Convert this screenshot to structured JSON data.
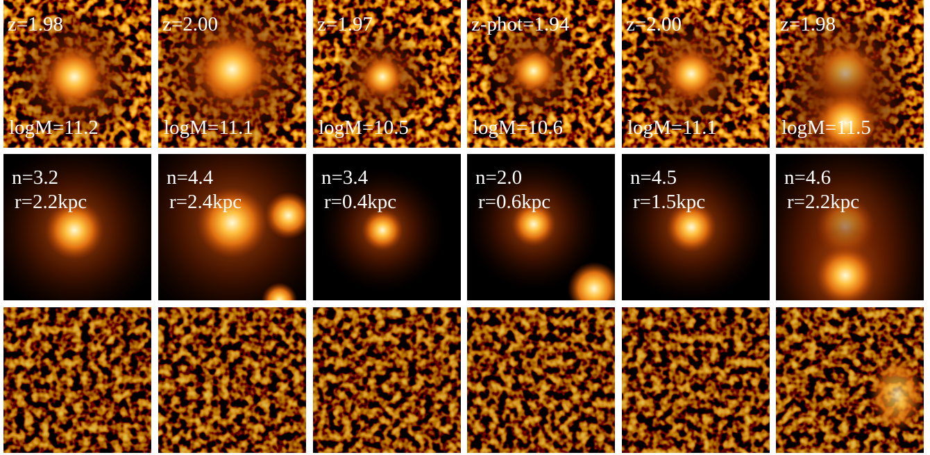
{
  "panels": [
    {
      "redshift": "z=1.98",
      "mass": "logM=11.2",
      "sersic": "n=3.2",
      "radius": "r=2.2kpc"
    },
    {
      "redshift": "z=2.00",
      "mass": "logM=11.1",
      "sersic": "n=4.4",
      "radius": "r=2.4kpc"
    },
    {
      "redshift": "z=1.97",
      "mass": "logM=10.5",
      "sersic": "n=3.4",
      "radius": "r=0.4kpc"
    },
    {
      "redshift": "z-phot=1.94",
      "mass": "logM=10.6",
      "sersic": "n=2.0",
      "radius": "r=0.6kpc"
    },
    {
      "redshift": "z=2.00",
      "mass": "logM=11.1",
      "sersic": "n=4.5",
      "radius": "r=1.5kpc"
    },
    {
      "redshift": "z=1.98",
      "mass": "logM=11.5",
      "sersic": "n=4.6",
      "radius": "r=2.2kpc"
    }
  ]
}
